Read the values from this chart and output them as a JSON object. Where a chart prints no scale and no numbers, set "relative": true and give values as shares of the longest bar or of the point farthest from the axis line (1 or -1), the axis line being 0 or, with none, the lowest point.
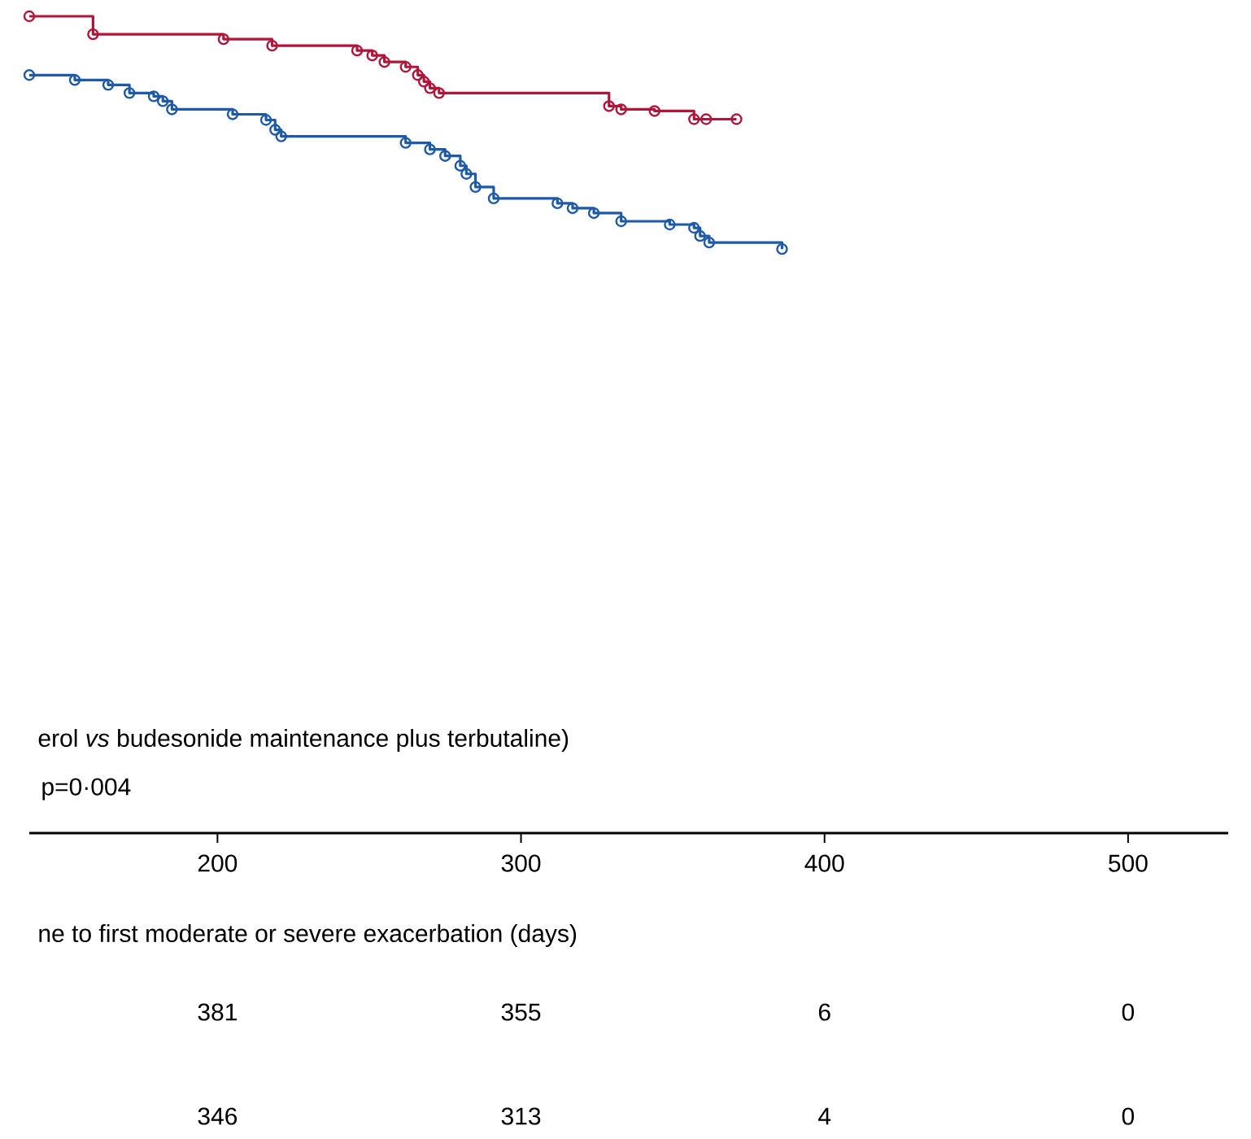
{
  "chart_data": {
    "type": "step",
    "relative": true,
    "xlabel": "ne to first moderate or severe exacerbation (days)",
    "x": [
      138,
      159,
      202,
      218,
      246,
      251,
      255,
      262,
      266,
      268,
      270,
      273,
      329,
      333,
      344,
      357,
      361,
      371
    ],
    "series": [
      {
        "color": "#b0163a",
        "values": [
          1.0,
          0.978,
          0.972,
          0.964,
          0.958,
          0.952,
          0.944,
          0.938,
          0.928,
          0.92,
          0.912,
          0.906,
          0.89,
          0.886,
          0.884,
          0.874,
          0.874,
          0.874
        ]
      },
      {
        "color": "#1f5aa6",
        "x": [
          138,
          153,
          164,
          171,
          179,
          182,
          185,
          205,
          216,
          219,
          221,
          262,
          270,
          275,
          280,
          282,
          285,
          291,
          312,
          317,
          324,
          333,
          349,
          357,
          359,
          362,
          386
        ],
        "values": [
          0.928,
          0.922,
          0.916,
          0.906,
          0.902,
          0.896,
          0.886,
          0.88,
          0.873,
          0.861,
          0.853,
          0.845,
          0.837,
          0.829,
          0.817,
          0.807,
          0.791,
          0.777,
          0.771,
          0.765,
          0.759,
          0.749,
          0.745,
          0.741,
          0.731,
          0.723,
          0.715
        ]
      }
    ],
    "xlim": [
      138,
      533
    ],
    "xticks": [
      200,
      300,
      400,
      500
    ],
    "marker": "circle",
    "line_style": "solid",
    "annotations": [
      "erol *vs* budesonide maintenance plus terbutaline)",
      "p=0·004",
      "381",
      "355",
      "6",
      "0",
      "346",
      "313",
      "4",
      "0"
    ]
  }
}
